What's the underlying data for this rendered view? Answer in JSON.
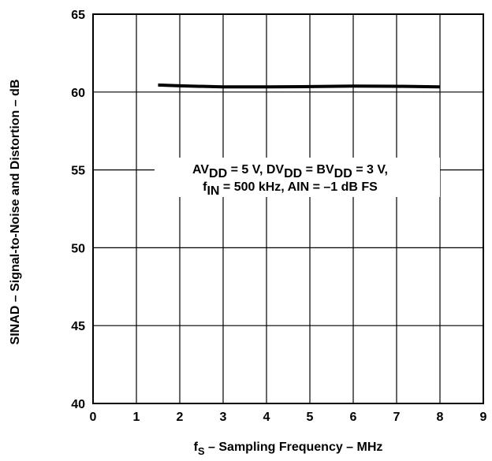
{
  "chart_data": {
    "type": "line",
    "x_label": {
      "main": "f",
      "sub": "S",
      "rest": " – Sampling Frequency – MHz"
    },
    "y_label": "SINAD – Signal-to-Noise and Distortion – dB",
    "xlim": [
      0,
      9
    ],
    "ylim": [
      40,
      65
    ],
    "x_ticks": [
      "0",
      "1",
      "2",
      "3",
      "4",
      "5",
      "6",
      "7",
      "8",
      "9"
    ],
    "y_ticks": [
      "40",
      "45",
      "50",
      "55",
      "60",
      "65"
    ],
    "grid": true,
    "annotation": {
      "line1": [
        {
          "t": "AV"
        },
        {
          "t": "DD",
          "sub": true
        },
        {
          "t": " = 5 V, DV"
        },
        {
          "t": "DD",
          "sub": true
        },
        {
          "t": " = BV"
        },
        {
          "t": "DD",
          "sub": true
        },
        {
          "t": " = 3 V,"
        }
      ],
      "line2": [
        {
          "t": "f"
        },
        {
          "t": "IN",
          "sub": true
        },
        {
          "t": " = 500 kHz, AIN = –1 dB FS"
        }
      ]
    },
    "series": [
      {
        "x": [
          1.5,
          2,
          3,
          4,
          5,
          6,
          7,
          8
        ],
        "y": [
          60.45,
          60.4,
          60.33,
          60.33,
          60.35,
          60.38,
          60.37,
          60.33
        ]
      }
    ]
  }
}
